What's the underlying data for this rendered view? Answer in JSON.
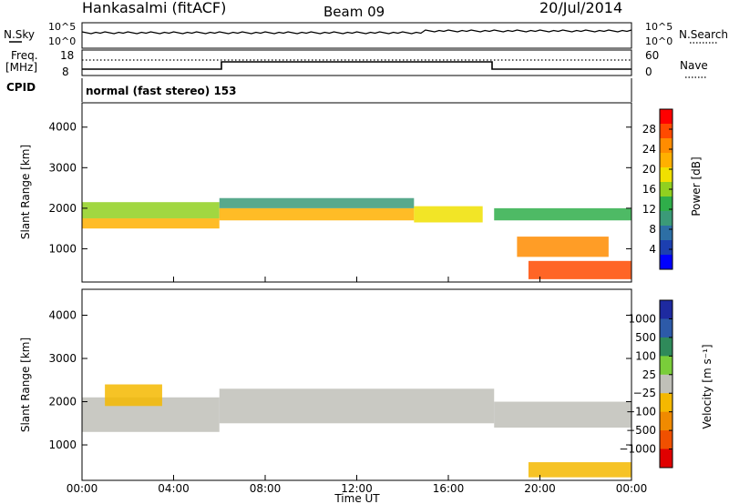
{
  "header": {
    "station": "Hankasalmi (fitACF)",
    "beam": "Beam 09",
    "date": "20/Jul/2014"
  },
  "noise_panel": {
    "left_label": "N.Sky",
    "left_ticks": [
      "10^5",
      "10^0"
    ],
    "right_ticks": [
      "10^5",
      "10^0"
    ],
    "right_label": "N.Search"
  },
  "freq_panel": {
    "left_label_line1": "Freq.",
    "left_label_line2": "[MHz]",
    "left_ticks": [
      "18",
      "8"
    ],
    "right_ticks": [
      "60",
      "0"
    ],
    "right_label": "Nave"
  },
  "cpid_panel": {
    "label": "CPID",
    "value": "normal (fast stereo) 153"
  },
  "x_axis": {
    "ticks": [
      "00:00",
      "04:00",
      "08:00",
      "12:00",
      "16:00",
      "20:00",
      "00:00"
    ],
    "title": "Time UT"
  },
  "colorbars": {
    "power": {
      "title": "Power [dB]",
      "ticks": [
        "28",
        "24",
        "20",
        "16",
        "12",
        "8",
        "4"
      ],
      "colors": [
        "#ff0000",
        "#ff4a00",
        "#ff8c00",
        "#ffb000",
        "#f0e000",
        "#90d020",
        "#2fae4a",
        "#3b9a78",
        "#2d6fa5",
        "#1c3fb0",
        "#0000ff"
      ]
    },
    "velocity": {
      "title": "Velocity [m s⁻¹]",
      "ticks": [
        "1000",
        "500",
        "100",
        "25",
        "−25",
        "−100",
        "−500",
        "−1000"
      ],
      "colors": [
        "#1e2aa0",
        "#2d5aa8",
        "#2f8a5a",
        "#7acd3a",
        "#c0c0b8",
        "#f5b800",
        "#f08a00",
        "#f05000",
        "#e00000"
      ]
    }
  },
  "chart_data": [
    {
      "type": "heatmap",
      "name": "power",
      "ylabel": "Slant Range [km]",
      "yticks": [
        1000,
        2000,
        3000,
        4000
      ],
      "ylim": [
        180,
        4600
      ],
      "xlim": [
        0,
        24
      ],
      "colorbar_label": "Power [dB]",
      "colorbar_range": [
        0,
        30
      ],
      "bands": [
        {
          "t0": 0.0,
          "t1": 6.0,
          "r0": 1500,
          "r1": 1750,
          "value": 22
        },
        {
          "t0": 0.0,
          "t1": 6.0,
          "r0": 1750,
          "r1": 2150,
          "value": 14
        },
        {
          "t0": 6.0,
          "t1": 14.5,
          "r0": 1700,
          "r1": 2000,
          "value": 21
        },
        {
          "t0": 6.0,
          "t1": 14.5,
          "r0": 2000,
          "r1": 2250,
          "value": 10
        },
        {
          "t0": 14.5,
          "t1": 17.5,
          "r0": 1650,
          "r1": 2050,
          "value": 18
        },
        {
          "t0": 18.0,
          "t1": 24.0,
          "r0": 1700,
          "r1": 2000,
          "value": 12
        },
        {
          "t0": 19.5,
          "t1": 24.0,
          "r0": 250,
          "r1": 700,
          "value": 26
        },
        {
          "t0": 19.0,
          "t1": 23.0,
          "r0": 800,
          "r1": 1300,
          "value": 24
        }
      ]
    },
    {
      "type": "heatmap",
      "name": "velocity",
      "ylabel": "Slant Range [km]",
      "yticks": [
        1000,
        2000,
        3000,
        4000
      ],
      "ylim": [
        180,
        4600
      ],
      "xlim": [
        0,
        24
      ],
      "colorbar_label": "Velocity [m s⁻¹]",
      "colorbar_range": [
        -1000,
        1000
      ],
      "bands": [
        {
          "t0": 0.0,
          "t1": 6.0,
          "r0": 1300,
          "r1": 2100,
          "value": 0
        },
        {
          "t0": 1.0,
          "t1": 3.5,
          "r0": 1900,
          "r1": 2400,
          "value": -150
        },
        {
          "t0": 6.0,
          "t1": 18.0,
          "r0": 1500,
          "r1": 2300,
          "value": 0
        },
        {
          "t0": 18.0,
          "t1": 24.0,
          "r0": 1400,
          "r1": 2000,
          "value": 0
        },
        {
          "t0": 19.5,
          "t1": 24.0,
          "r0": 250,
          "r1": 600,
          "value": -200
        }
      ]
    }
  ]
}
